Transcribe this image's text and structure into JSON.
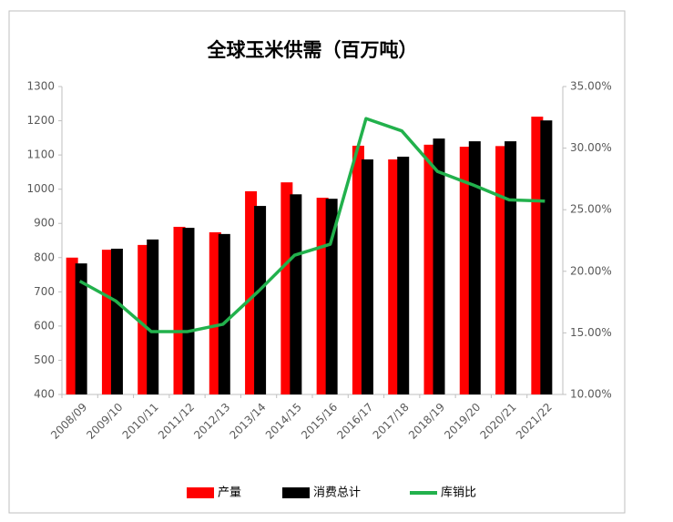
{
  "chart_data": {
    "type": "bar_line",
    "title": "全球玉米供需（百万吨）",
    "categories": [
      "2008/09",
      "2009/10",
      "2010/11",
      "2011/12",
      "2012/13",
      "2013/14",
      "2014/15",
      "2015/16",
      "2016/17",
      "2017/18",
      "2018/19",
      "2019/20",
      "2020/21",
      "2021/22"
    ],
    "series": [
      {
        "name": "产量",
        "color": "#ff0000",
        "type": "bar",
        "values": [
          800,
          823,
          837,
          890,
          874,
          994,
          1020,
          975,
          1127,
          1087,
          1130,
          1124,
          1126,
          1212
        ]
      },
      {
        "name": "消费总计",
        "color": "#000000",
        "type": "bar",
        "values": [
          783,
          826,
          853,
          887,
          869,
          951,
          985,
          972,
          1087,
          1095,
          1148,
          1140,
          1140,
          1201
        ]
      },
      {
        "name": "库销比",
        "color": "#22b14c",
        "type": "line",
        "axis": "y2",
        "values": [
          19.2,
          17.6,
          15.1,
          15.1,
          15.7,
          18.4,
          21.3,
          22.2,
          32.4,
          31.4,
          28.1,
          27.0,
          25.8,
          25.7
        ]
      }
    ],
    "ylim": [
      400,
      1300
    ],
    "yticks": [
      400,
      500,
      600,
      700,
      800,
      900,
      1000,
      1100,
      1200,
      1300
    ],
    "y2lim": [
      10,
      35
    ],
    "y2ticks": [
      {
        "value": 10,
        "label": "10.00%"
      },
      {
        "value": 15,
        "label": "15.00%"
      },
      {
        "value": 20,
        "label": "20.00%"
      },
      {
        "value": 25,
        "label": "25.00%"
      },
      {
        "value": 30,
        "label": "30.00%"
      },
      {
        "value": 35,
        "label": "35.00%"
      }
    ],
    "legend": "bottom"
  }
}
